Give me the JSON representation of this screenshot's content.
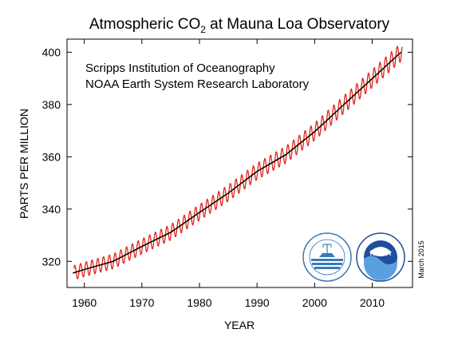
{
  "chart_data": {
    "type": "line",
    "title_main": "Atmospheric CO",
    "title_sub": "2",
    "title_rest": " at Mauna Loa Observatory",
    "xlabel": "YEAR",
    "ylabel": "PARTS PER MILLION",
    "xlim": [
      1957,
      2017
    ],
    "ylim": [
      310,
      405
    ],
    "xticks": [
      1960,
      1970,
      1980,
      1990,
      2000,
      2010
    ],
    "yticks": [
      320,
      340,
      360,
      380,
      400
    ],
    "annotations": [
      "Scripps Institution of Oceanography",
      "NOAA Earth System Research Laboratory"
    ],
    "date_stamp": "March 2015",
    "grid": false,
    "series": [
      {
        "kind": "monthly",
        "color": "#e0251b",
        "seasonal_amplitude": 3.2,
        "x_start": 1958.2,
        "x_end": 2015.2
      },
      {
        "kind": "annual-mean",
        "color": "#000000",
        "x": [
          1958,
          1960,
          1965,
          1970,
          1975,
          1980,
          1985,
          1990,
          1995,
          2000,
          2005,
          2010,
          2015
        ],
        "values": [
          315.5,
          316.9,
          320.0,
          325.7,
          331.1,
          338.7,
          346.1,
          354.4,
          360.8,
          369.6,
          379.8,
          389.9,
          400.0
        ]
      }
    ],
    "logos": [
      {
        "name": "scripps-seal",
        "color": "#3a7ab8"
      },
      {
        "name": "noaa-logo",
        "color": "#1f4e9c"
      }
    ]
  }
}
